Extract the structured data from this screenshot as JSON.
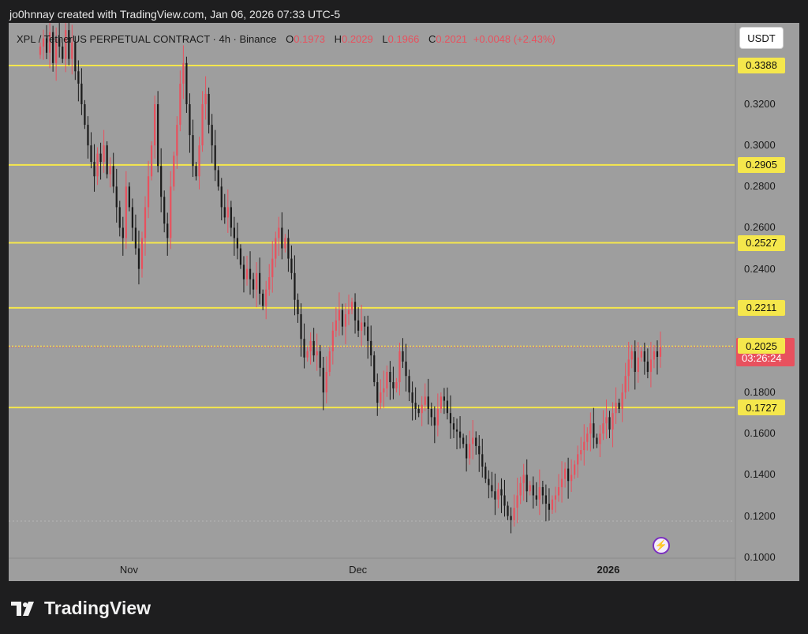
{
  "header": {
    "creator_line": "jo0hnnay created with TradingView.com, Jan 06, 2026 07:33 UTC-5"
  },
  "symbol": {
    "title": "XPL / TetherUS PERPETUAL CONTRACT · 4h · Binance",
    "open_key": "O",
    "open": "0.1973",
    "high_key": "H",
    "high": "0.2029",
    "low_key": "L",
    "low": "0.1966",
    "close_key": "C",
    "close": "0.2021",
    "change": "+0.0048 (+2.43%)"
  },
  "currency_button": "USDT",
  "brand": "TradingView",
  "colors": {
    "background": "#9e9e9e",
    "up": "#e8515e",
    "down": "#1a1a1a",
    "level": "#f5e74c",
    "last_price": "#e8515e"
  },
  "last_price": {
    "value": "0.2021",
    "countdown": "03:26:24"
  },
  "chart_data": {
    "type": "candlestick",
    "y_scale": "linear",
    "ylim": [
      0.0995,
      0.3595
    ],
    "x_ticks": [
      {
        "label": "Nov",
        "bold": false,
        "index": 28
      },
      {
        "label": "Dec",
        "bold": false,
        "index": 100
      },
      {
        "label": "2026",
        "bold": true,
        "index": 178
      }
    ],
    "y_ticks": [
      "0.3200",
      "0.3000",
      "0.2800",
      "0.2600",
      "0.2400",
      "0.1800",
      "0.1600",
      "0.1400",
      "0.1200",
      "0.1000"
    ],
    "horizontal_levels": [
      "0.3388",
      "0.2905",
      "0.2527",
      "0.2211",
      "0.2025",
      "0.1727"
    ],
    "series": [
      {
        "close": [
          0.348,
          0.352,
          0.345,
          0.355,
          0.34,
          0.352,
          0.348,
          0.342,
          0.356,
          0.342,
          0.35,
          0.336,
          0.33,
          0.32,
          0.31,
          0.3,
          0.292,
          0.285,
          0.296,
          0.292,
          0.3,
          0.286,
          0.29,
          0.28,
          0.27,
          0.26,
          0.255,
          0.28,
          0.27,
          0.26,
          0.25,
          0.24,
          0.255,
          0.27,
          0.285,
          0.3,
          0.32,
          0.29,
          0.275,
          0.262,
          0.255,
          0.28,
          0.295,
          0.31,
          0.33,
          0.34,
          0.32,
          0.305,
          0.29,
          0.285,
          0.3,
          0.32,
          0.325,
          0.31,
          0.3,
          0.288,
          0.28,
          0.27,
          0.265,
          0.27,
          0.26,
          0.255,
          0.25,
          0.242,
          0.235,
          0.24,
          0.235,
          0.23,
          0.238,
          0.228,
          0.222,
          0.23,
          0.236,
          0.245,
          0.255,
          0.26,
          0.25,
          0.255,
          0.245,
          0.238,
          0.225,
          0.218,
          0.206,
          0.197,
          0.2,
          0.205,
          0.198,
          0.2,
          0.192,
          0.18,
          0.19,
          0.2,
          0.21,
          0.215,
          0.22,
          0.212,
          0.218,
          0.22,
          0.224,
          0.215,
          0.21,
          0.214,
          0.212,
          0.205,
          0.198,
          0.185,
          0.175,
          0.18,
          0.182,
          0.19,
          0.185,
          0.182,
          0.185,
          0.2,
          0.195,
          0.188,
          0.18,
          0.175,
          0.172,
          0.17,
          0.174,
          0.178,
          0.172,
          0.168,
          0.164,
          0.172,
          0.178,
          0.176,
          0.17,
          0.165,
          0.162,
          0.161,
          0.158,
          0.155,
          0.148,
          0.155,
          0.158,
          0.154,
          0.15,
          0.144,
          0.138,
          0.135,
          0.132,
          0.128,
          0.133,
          0.13,
          0.125,
          0.12,
          0.118,
          0.124,
          0.13,
          0.136,
          0.14,
          0.132,
          0.135,
          0.13,
          0.128,
          0.134,
          0.13,
          0.126,
          0.123,
          0.128,
          0.13,
          0.134,
          0.138,
          0.143,
          0.137,
          0.14,
          0.145,
          0.15,
          0.152,
          0.156,
          0.16,
          0.165,
          0.158,
          0.155,
          0.16,
          0.165,
          0.168,
          0.162,
          0.17,
          0.175,
          0.172,
          0.18,
          0.188,
          0.196,
          0.2,
          0.19,
          0.197,
          0.2,
          0.195,
          0.19,
          0.196,
          0.2,
          0.1973,
          0.2021
        ],
        "colors_note": "up candles red, down candles black"
      }
    ]
  }
}
